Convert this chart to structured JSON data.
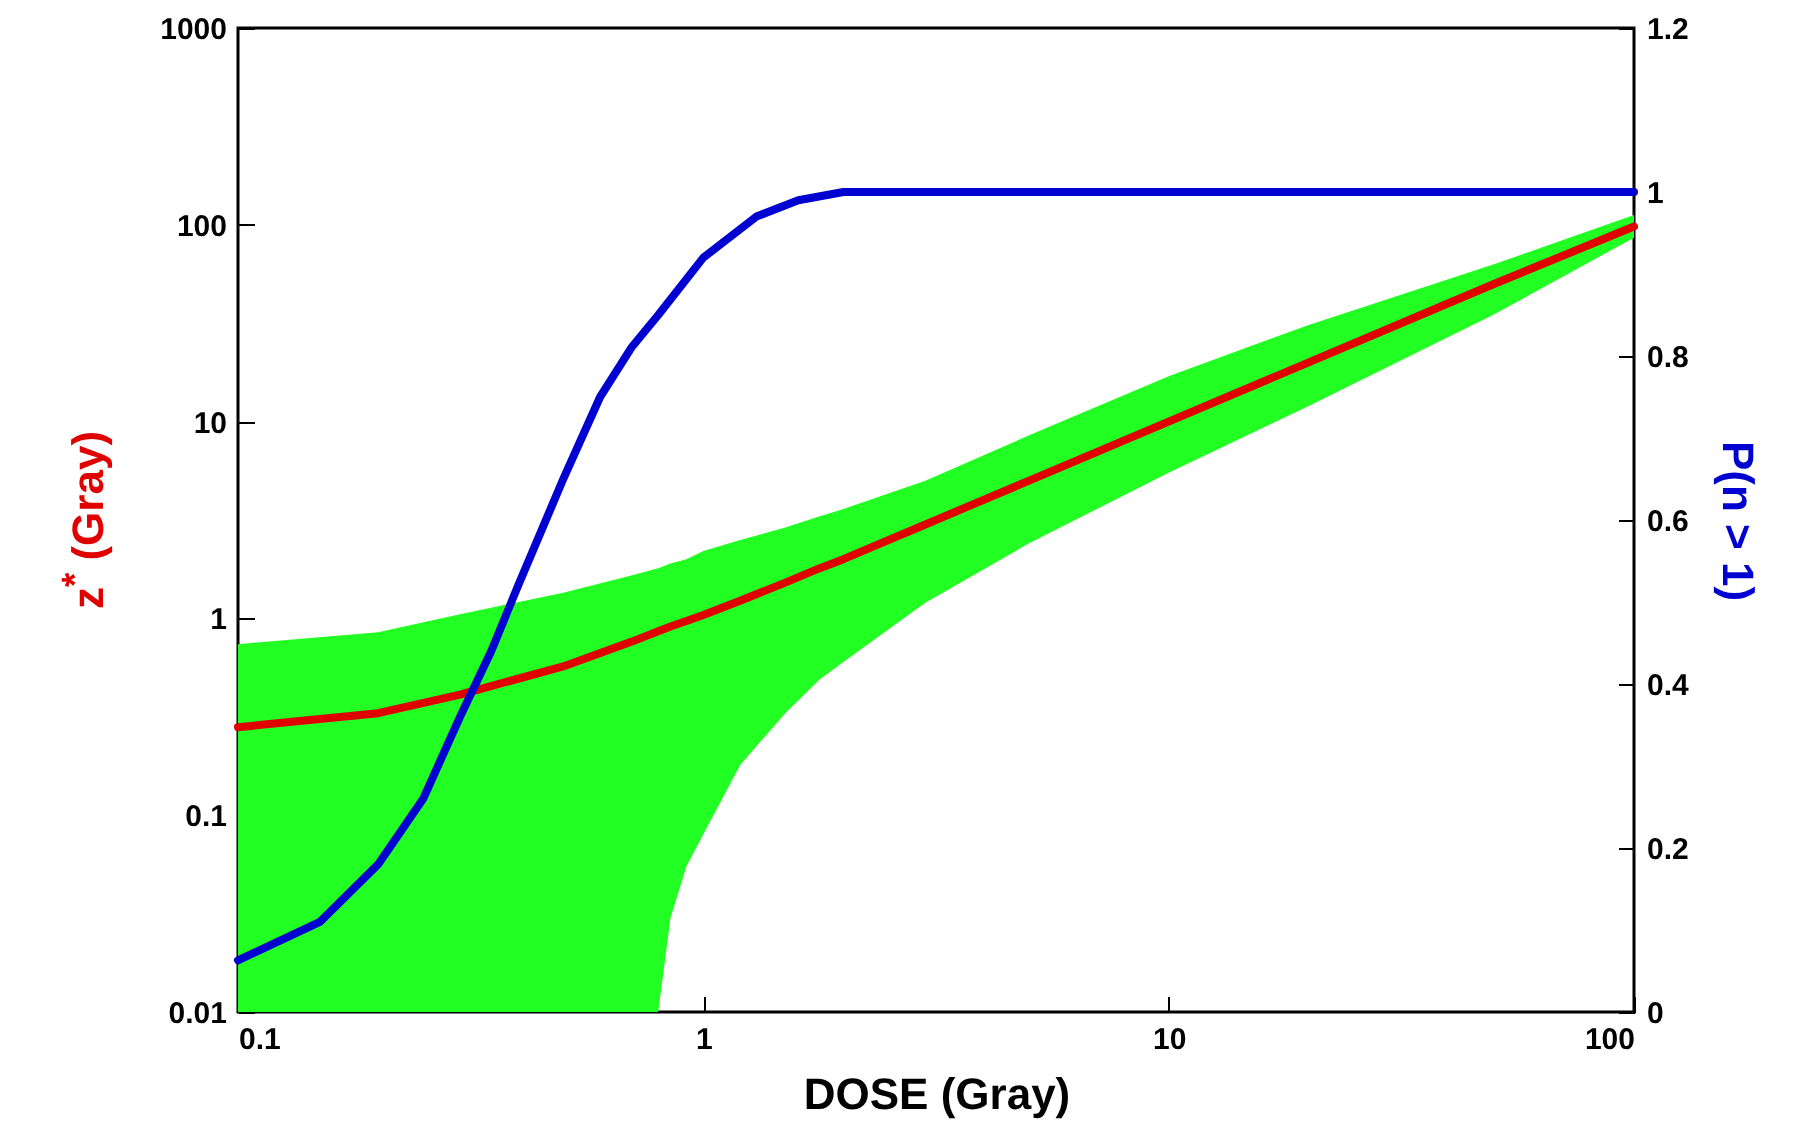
{
  "chart_data": {
    "type": "line",
    "xlabel": "DOSE (Gray)",
    "ylabel": "z$^{*}$ (Gray)",
    "y2label": "P(n > 1)",
    "log": "xy",
    "xlim": [
      0.1,
      100
    ],
    "xticks": [
      0.1,
      1,
      10,
      100
    ],
    "ylim": [
      0.01,
      1000
    ],
    "yticks": [
      0.01,
      0.1,
      1,
      10,
      100,
      1000
    ],
    "y2lim": [
      0,
      1.2
    ],
    "y2ticks": [
      0,
      0.2,
      0.4,
      0.6,
      0.8,
      1,
      1.2
    ],
    "grid": false,
    "line_style": "solid",
    "series": [
      {
        "color": "#e00000",
        "x": [
          0.1,
          0.2,
          0.3,
          0.5,
          0.7,
          0.8,
          0.85,
          0.92,
          1,
          1.2,
          1.5,
          1.78,
          2,
          3,
          5,
          10,
          20,
          50,
          100
        ],
        "values": [
          0.28,
          0.33,
          0.41,
          0.57,
          0.76,
          0.86,
          0.91,
          0.97,
          1.04,
          1.23,
          1.52,
          1.8,
          2.0,
          3.0,
          5.0,
          10,
          20,
          50,
          98
        ],
        "lower": [
          0.01,
          0.01,
          0.01,
          0.01,
          0.01,
          0.01,
          0.03,
          0.055,
          0.08,
          0.18,
          0.33,
          0.49,
          0.6,
          1.2,
          2.4,
          5.5,
          12,
          35,
          86
        ],
        "upper": [
          0.74,
          0.85,
          1.05,
          1.35,
          1.65,
          1.8,
          1.9,
          2.0,
          2.2,
          2.5,
          2.9,
          3.3,
          3.6,
          5.0,
          8.5,
          17,
          31,
          63,
          112
        ]
      },
      {
        "color": "#0000d0",
        "axis": "y2",
        "x": [
          0.1,
          0.15,
          0.2,
          0.25,
          0.3,
          0.35,
          0.4,
          0.5,
          0.6,
          0.7,
          0.8,
          1,
          1.3,
          1.6,
          2,
          10,
          100
        ],
        "values": [
          0.063,
          0.11,
          0.18,
          0.26,
          0.36,
          0.44,
          0.52,
          0.65,
          0.75,
          0.81,
          0.85,
          0.92,
          0.97,
          0.99,
          1,
          1,
          1
        ]
      }
    ]
  }
}
